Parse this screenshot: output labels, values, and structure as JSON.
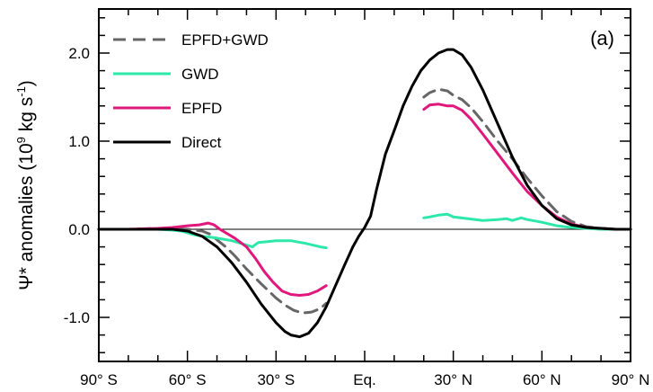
{
  "chart_data": {
    "type": "line",
    "panel_label": "(a)",
    "ylabel_prefix": "Ψ* anomalies (10",
    "ylabel_exp9": "9",
    "ylabel_mid": " kg s",
    "ylabel_expm1": "-1",
    "ylabel_suffix": ")",
    "xlim": [
      -90,
      90
    ],
    "ylim": [
      -1.5,
      2.5
    ],
    "x_ticks": [
      {
        "value": -90,
        "label": "90° S"
      },
      {
        "value": -60,
        "label": "60° S"
      },
      {
        "value": -30,
        "label": "30° S"
      },
      {
        "value": 0,
        "label": "Eq."
      },
      {
        "value": 30,
        "label": "30° N"
      },
      {
        "value": 60,
        "label": "60° N"
      },
      {
        "value": 90,
        "label": "90° N"
      }
    ],
    "x_minor_step": 10,
    "y_ticks": [
      {
        "value": -1.0,
        "label": "-1.0"
      },
      {
        "value": 0.0,
        "label": "0.0"
      },
      {
        "value": 1.0,
        "label": "1.0"
      },
      {
        "value": 2.0,
        "label": "2.0"
      }
    ],
    "y_minor_step": 0.2,
    "zero_line": true,
    "legend_position": "top-left",
    "series": [
      {
        "name": "EPFD+GWD",
        "color": "#666666",
        "dashed": true,
        "x": [
          -90,
          -80,
          -70,
          -65,
          -60,
          -55,
          -52,
          -50,
          -47,
          -44,
          -40,
          -35,
          -30,
          -27,
          -24,
          -21,
          -18,
          -15,
          -13
        ],
        "y": [
          0.0,
          0.0,
          0.01,
          0.01,
          0.0,
          -0.02,
          -0.06,
          -0.12,
          -0.2,
          -0.3,
          -0.45,
          -0.62,
          -0.78,
          -0.86,
          -0.92,
          -0.95,
          -0.94,
          -0.9,
          -0.84
        ],
        "x2": [
          20,
          22,
          25,
          28,
          30,
          33,
          36,
          40,
          45,
          50,
          55,
          60,
          65,
          70,
          75,
          80,
          85,
          90
        ],
        "y2": [
          1.5,
          1.55,
          1.59,
          1.57,
          1.52,
          1.47,
          1.38,
          1.22,
          1.0,
          0.8,
          0.58,
          0.38,
          0.2,
          0.09,
          0.03,
          0.01,
          0.0,
          0.0
        ]
      },
      {
        "name": "GWD",
        "color": "#2ee8a8",
        "dashed": false,
        "x": [
          -90,
          -80,
          -70,
          -65,
          -62,
          -60,
          -58,
          -55,
          -50,
          -45,
          -40,
          -38,
          -36,
          -33,
          -30,
          -25,
          -20,
          -15,
          -13
        ],
        "y": [
          0.0,
          0.0,
          0.0,
          -0.01,
          -0.02,
          -0.04,
          -0.06,
          -0.08,
          -0.1,
          -0.13,
          -0.18,
          -0.2,
          -0.15,
          -0.14,
          -0.13,
          -0.13,
          -0.16,
          -0.2,
          -0.21
        ],
        "x2": [
          20,
          22,
          25,
          28,
          30,
          35,
          40,
          45,
          48,
          50,
          53,
          55,
          60,
          65,
          70,
          75,
          80,
          85,
          90
        ],
        "y2": [
          0.13,
          0.14,
          0.16,
          0.17,
          0.14,
          0.12,
          0.1,
          0.11,
          0.12,
          0.1,
          0.13,
          0.11,
          0.08,
          0.04,
          0.02,
          0.01,
          0.0,
          0.0,
          0.0
        ]
      },
      {
        "name": "EPFD",
        "color": "#e0187c",
        "dashed": false,
        "x": [
          -90,
          -80,
          -70,
          -65,
          -60,
          -56,
          -53,
          -51,
          -49,
          -47,
          -44,
          -40,
          -37,
          -34,
          -31,
          -28,
          -25,
          -22,
          -19,
          -16,
          -13
        ],
        "y": [
          0.0,
          0.0,
          0.01,
          0.02,
          0.04,
          0.05,
          0.07,
          0.05,
          0.0,
          -0.04,
          -0.1,
          -0.2,
          -0.33,
          -0.48,
          -0.6,
          -0.7,
          -0.74,
          -0.75,
          -0.74,
          -0.7,
          -0.64
        ],
        "x2": [
          20,
          22,
          25,
          28,
          30,
          33,
          36,
          40,
          45,
          50,
          55,
          60,
          65,
          70,
          75,
          80,
          85,
          90
        ],
        "y2": [
          1.36,
          1.41,
          1.42,
          1.4,
          1.4,
          1.35,
          1.25,
          1.08,
          0.86,
          0.64,
          0.43,
          0.27,
          0.14,
          0.06,
          0.02,
          0.01,
          0.0,
          0.0
        ]
      },
      {
        "name": "Direct",
        "color": "#000000",
        "dashed": false,
        "x": [
          -90,
          -80,
          -70,
          -65,
          -60,
          -55,
          -50,
          -45,
          -40,
          -35,
          -30,
          -27,
          -25,
          -22,
          -19,
          -16,
          -13,
          -10,
          -7,
          -4,
          -2,
          0,
          2,
          4,
          7,
          10,
          13,
          16,
          19,
          22,
          25,
          28,
          30,
          33,
          36,
          40,
          45,
          50,
          55,
          60,
          65,
          70,
          75,
          80,
          85,
          90
        ],
        "y": [
          0.0,
          0.0,
          0.0,
          0.0,
          -0.02,
          -0.08,
          -0.2,
          -0.38,
          -0.6,
          -0.85,
          -1.06,
          -1.16,
          -1.2,
          -1.22,
          -1.18,
          -1.06,
          -0.88,
          -0.65,
          -0.42,
          -0.2,
          -0.08,
          0.02,
          0.15,
          0.45,
          0.85,
          1.12,
          1.4,
          1.62,
          1.8,
          1.92,
          2.0,
          2.04,
          2.04,
          1.98,
          1.84,
          1.58,
          1.2,
          0.82,
          0.5,
          0.27,
          0.12,
          0.05,
          0.02,
          0.01,
          0.0,
          0.0
        ]
      }
    ]
  }
}
